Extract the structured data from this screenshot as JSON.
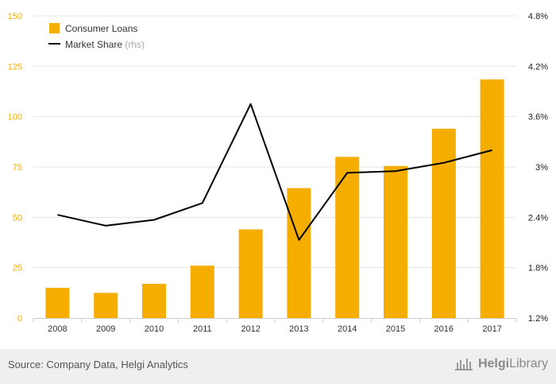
{
  "chart_data": {
    "type": "bar",
    "categories": [
      "2008",
      "2009",
      "2010",
      "2011",
      "2012",
      "2013",
      "2014",
      "2015",
      "2016",
      "2017"
    ],
    "series": [
      {
        "name": "Consumer Loans",
        "type": "bar",
        "axis": "left",
        "color": "#f5ad00",
        "values": [
          15.0,
          12.5,
          17.0,
          26.0,
          44.0,
          64.5,
          80.0,
          75.5,
          94.0,
          118.5
        ]
      },
      {
        "name": "Market Share",
        "type": "line",
        "axis": "right",
        "color": "#000000",
        "values": [
          2.43,
          2.3,
          2.37,
          2.57,
          3.75,
          2.13,
          2.93,
          2.95,
          3.05,
          3.2
        ]
      }
    ],
    "legend_suffix": "(rhs)",
    "y_left": {
      "min": 0,
      "max": 150,
      "ticks": [
        0,
        25,
        50,
        75,
        100,
        125,
        150
      ],
      "labels": [
        "0",
        "25",
        "50",
        "75",
        "100",
        "125",
        "150"
      ],
      "color": "#f5ad00"
    },
    "y_right": {
      "min": 1.2,
      "max": 4.8,
      "ticks": [
        1.2,
        1.8,
        2.4,
        3.0,
        3.6,
        4.2,
        4.8
      ],
      "labels": [
        "1.2%",
        "1.8%",
        "2.4%",
        "3%",
        "3.6%",
        "4.2%",
        "4.8%"
      ],
      "color": "#222222"
    },
    "grid": true,
    "legend_position": "top-left"
  },
  "footer": {
    "source": "Source: Company Data, Helgi Analytics",
    "logo_text_bold": "Helgi",
    "logo_text": "Library"
  }
}
